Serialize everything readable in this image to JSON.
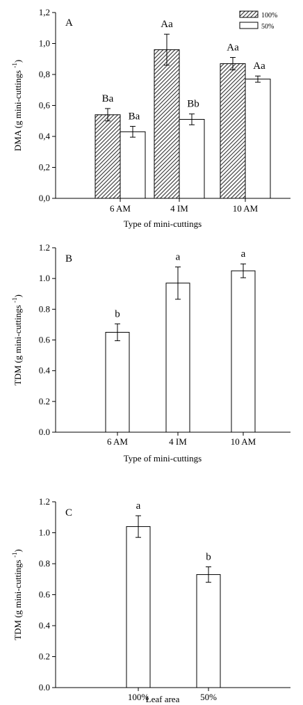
{
  "chart_data": [
    {
      "type": "bar",
      "panel_label": "A",
      "categories": [
        "6 AM",
        "4 IM",
        "10 AM"
      ],
      "series": [
        {
          "name": "100%",
          "values": [
            0.54,
            0.96,
            0.87
          ],
          "errors": [
            0.04,
            0.1,
            0.04
          ],
          "labels": [
            "Ba",
            "Aa",
            "Aa"
          ],
          "fill": "hatched"
        },
        {
          "name": "50%",
          "values": [
            0.43,
            0.51,
            0.77
          ],
          "errors": [
            0.035,
            0.035,
            0.02
          ],
          "labels": [
            "Ba",
            "Bb",
            "Aa"
          ],
          "fill": "white"
        }
      ],
      "xlabel": "Type of mini-cuttings",
      "ylabel": "DMA (g mini-cuttings",
      "ylabel_sup": "-1",
      "ylabel_close": ")",
      "ylim": [
        0,
        1.2
      ],
      "yticks": [
        "0,0",
        "0,2",
        "0,4",
        "0,6",
        "0,8",
        "1,0",
        "1,2"
      ],
      "legend": "top-right",
      "grid": false
    },
    {
      "type": "bar",
      "panel_label": "B",
      "categories": [
        "6 AM",
        "4 IM",
        "10 AM"
      ],
      "series": [
        {
          "values": [
            0.65,
            0.97,
            1.05
          ],
          "errors": [
            0.055,
            0.105,
            0.045
          ],
          "labels": [
            "b",
            "a",
            "a"
          ],
          "fill": "white"
        }
      ],
      "xlabel": "Type of mini-cuttings",
      "ylabel": "TDM (g mini-cuttings",
      "ylabel_sup": "-1",
      "ylabel_close": ")",
      "ylim": [
        0,
        1.2
      ],
      "yticks": [
        "0.0",
        "0.2",
        "0.4",
        "0.6",
        "0.8",
        "1.0",
        "1.2"
      ],
      "grid": false
    },
    {
      "type": "bar",
      "panel_label": "C",
      "categories": [
        "100%",
        "50%"
      ],
      "series": [
        {
          "values": [
            1.04,
            0.73
          ],
          "errors": [
            0.07,
            0.05
          ],
          "labels": [
            "a",
            "b"
          ],
          "fill": "white"
        }
      ],
      "xlabel": "Leaf area",
      "ylabel": "TDM (g mini-cuttings",
      "ylabel_sup": "-1",
      "ylabel_close": ")",
      "ylim": [
        0,
        1.2
      ],
      "yticks": [
        "0.0",
        "0.2",
        "0.4",
        "0.6",
        "0.8",
        "1.0",
        "1.2"
      ],
      "grid": false
    }
  ]
}
